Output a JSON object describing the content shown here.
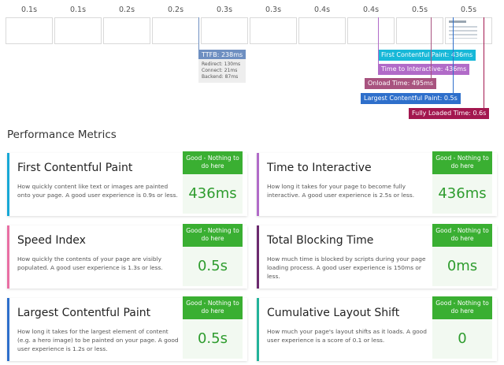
{
  "filmstrip": {
    "frames": [
      {
        "time": "0.1s"
      },
      {
        "time": "0.1s"
      },
      {
        "time": "0.2s"
      },
      {
        "time": "0.2s"
      },
      {
        "time": "0.3s"
      },
      {
        "time": "0.3s"
      },
      {
        "time": "0.4s"
      },
      {
        "time": "0.4s"
      },
      {
        "time": "0.5s"
      },
      {
        "time": "0.5s"
      }
    ]
  },
  "markers": {
    "ttfb": {
      "label": "TTFB: 238ms",
      "color": "#6e8fc1",
      "details": [
        "Redirect: 130ms",
        "Connect: 21ms",
        "Backend: 87ms"
      ]
    },
    "fcp": {
      "label": "First Contentful Paint: 436ms",
      "color": "#17b8d8"
    },
    "tti": {
      "label": "Time to Interactive: 436ms",
      "color": "#b16bc8"
    },
    "onload": {
      "label": "Onload Time: 495ms",
      "color": "#a8537f"
    },
    "lcp": {
      "label": "Largest Contentful Paint: 0.5s",
      "color": "#2e6fcb"
    },
    "fully_loaded": {
      "label": "Fully Loaded Time: 0.6s",
      "color": "#a3174f"
    }
  },
  "section_title": "Performance Metrics",
  "metrics": [
    {
      "title": "First Contentful Paint",
      "desc": "How quickly content like text or images are painted onto your page. A good user experience is 0.9s or less.",
      "grade": "Good - Nothing to do here",
      "value": "436ms",
      "accent": "#17a8d6"
    },
    {
      "title": "Time to Interactive",
      "desc": "How long it takes for your page to become fully interactive. A good user experience is 2.5s or less.",
      "grade": "Good - Nothing to do here",
      "value": "436ms",
      "accent": "#b16bc8"
    },
    {
      "title": "Speed Index",
      "desc": "How quickly the contents of your page are visibly populated. A good user experience is 1.3s or less.",
      "grade": "Good - Nothing to do here",
      "value": "0.5s",
      "accent": "#e96fa3"
    },
    {
      "title": "Total Blocking Time",
      "desc": "How much time is blocked by scripts during your page loading process. A good user experience is 150ms or less.",
      "grade": "Good - Nothing to do here",
      "value": "0ms",
      "accent": "#6b2a6e"
    },
    {
      "title": "Largest Contentful Paint",
      "desc": "How long it takes for the largest element of content (e.g. a hero image) to be painted on your page. A good user experience is 1.2s or less.",
      "grade": "Good - Nothing to do here",
      "value": "0.5s",
      "accent": "#2e6fcb"
    },
    {
      "title": "Cumulative Layout Shift",
      "desc": "How much your page's layout shifts as it loads. A good user experience is a score of 0.1 or less.",
      "grade": "Good - Nothing to do here",
      "value": "0",
      "accent": "#23b39a"
    }
  ]
}
